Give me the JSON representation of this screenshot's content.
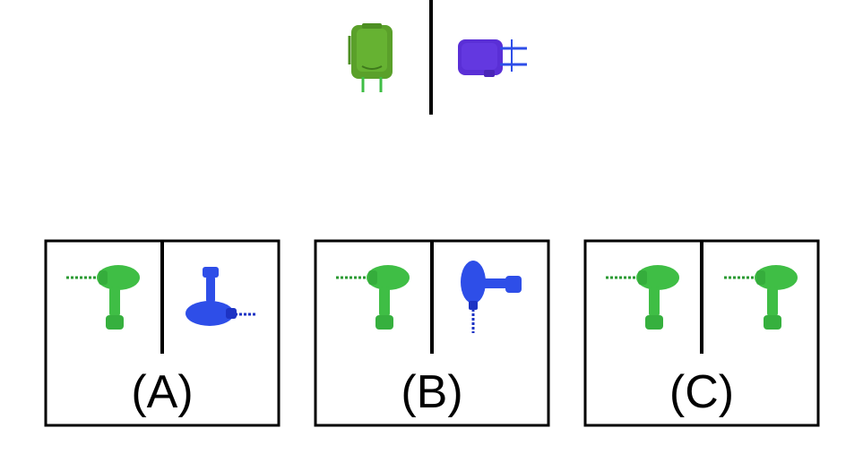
{
  "colors": {
    "green": "#3fbe45",
    "green_dark": "#2a9a32",
    "blue": "#2e4ee8",
    "blue_dark": "#1d33c4",
    "purple": "#5a2fd6",
    "olive_green": "#5aa02a"
  },
  "reference": {
    "left_icon": "backpack-green-front-icon",
    "right_icon": "backpack-purple-side-icon"
  },
  "options": [
    {
      "label": "(A)",
      "left_icon": "drill-green-icon",
      "right_icon": "drill-blue-rotated-icon"
    },
    {
      "label": "(B)",
      "left_icon": "drill-green-icon",
      "right_icon": "drill-blue-rotated-icon"
    },
    {
      "label": "(C)",
      "left_icon": "drill-green-icon",
      "right_icon": "drill-green-icon"
    }
  ]
}
